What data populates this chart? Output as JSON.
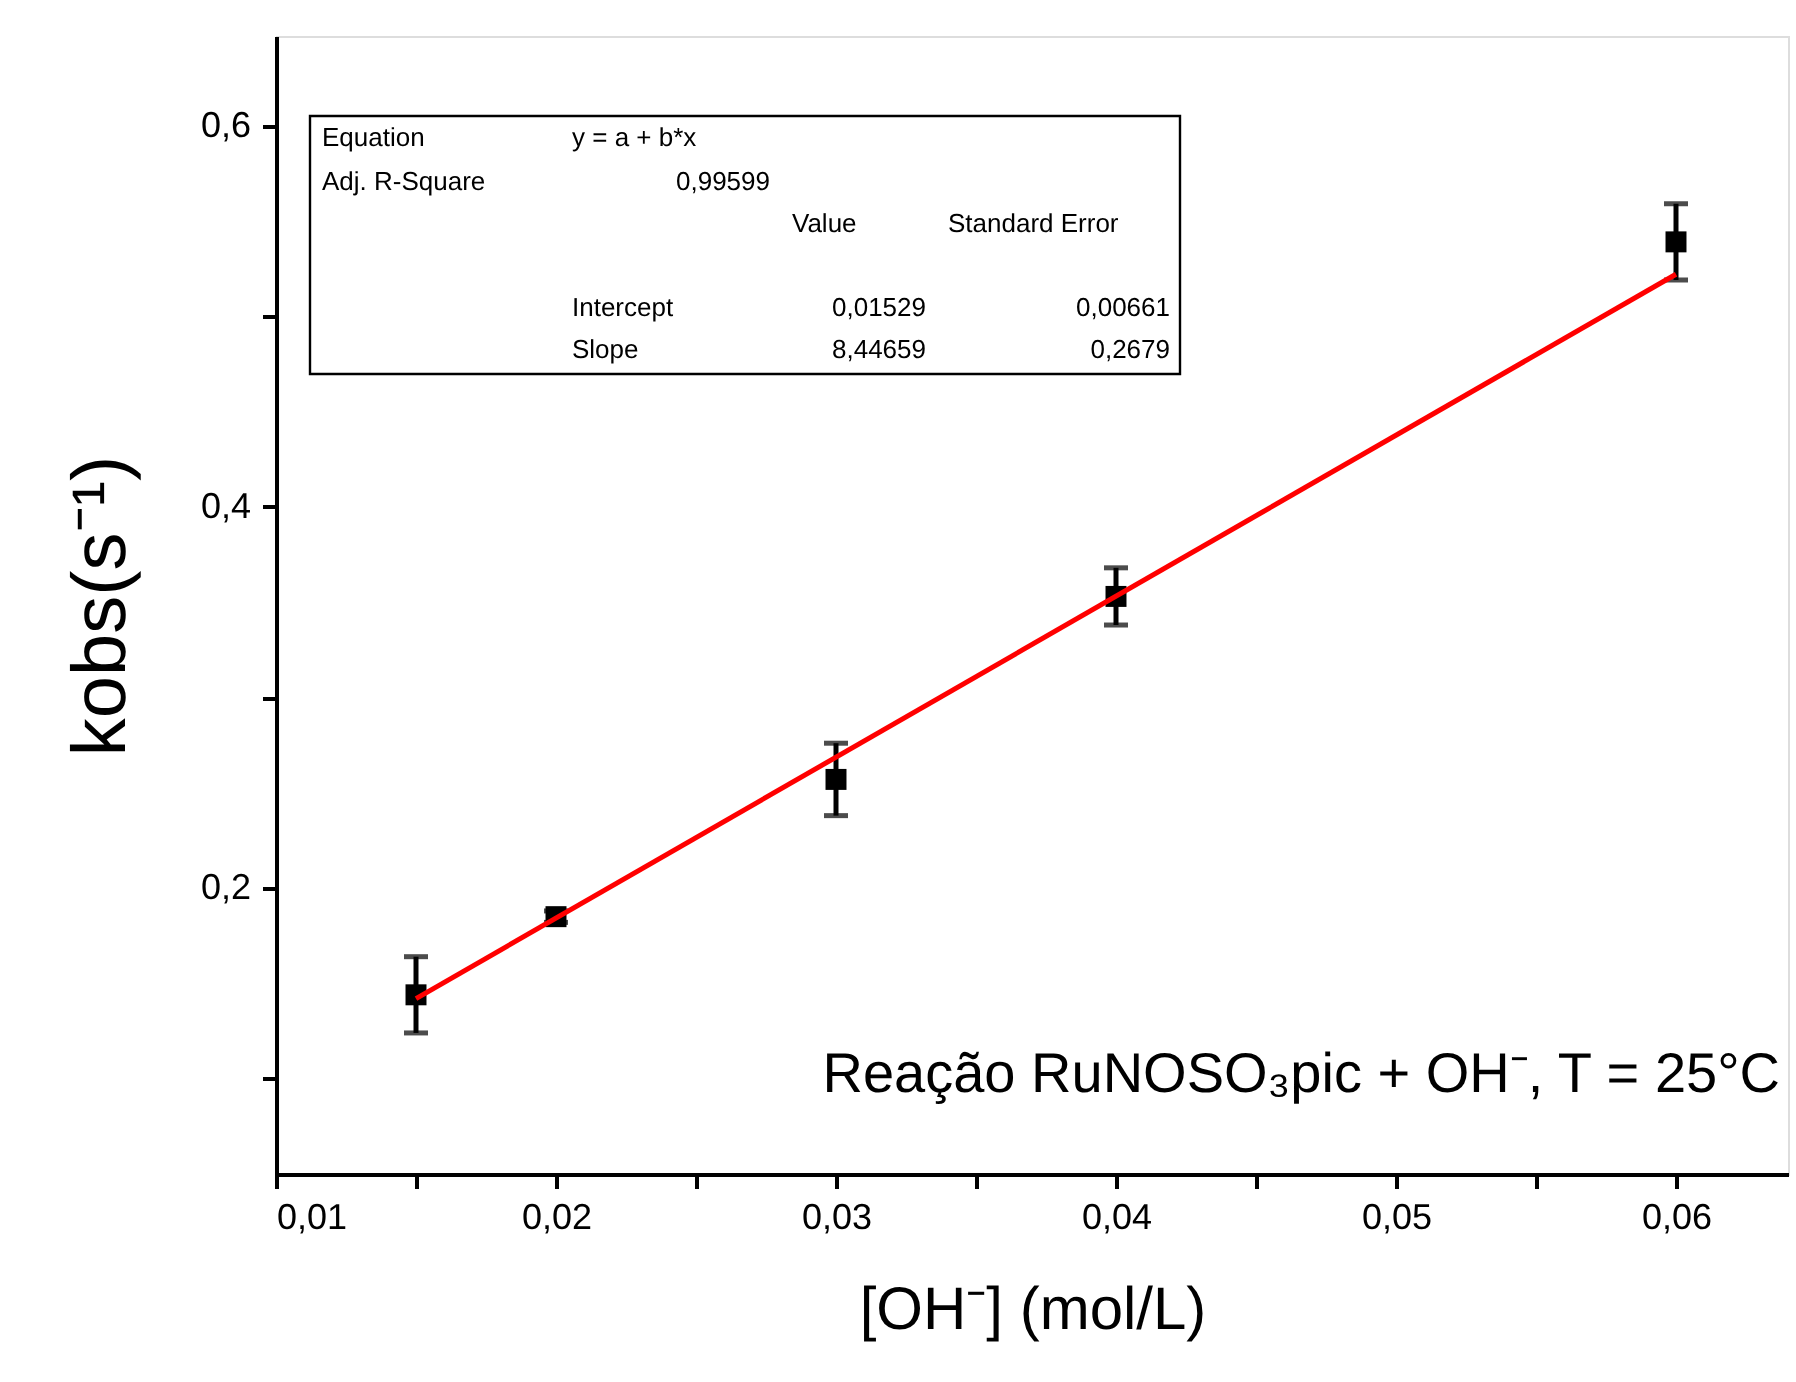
{
  "chart_data": {
    "type": "scatter",
    "xlabel": "[OH⁻] (mol/L)",
    "ylabel": "kobs(s⁻¹)",
    "x": [
      0.015,
      0.02,
      0.03,
      0.04,
      0.06
    ],
    "series": [
      {
        "type": "scatter",
        "color": "#000000",
        "marker": "square",
        "values": [
          0.144,
          0.185,
          0.257,
          0.353,
          0.539
        ],
        "errors": [
          0.02,
          0.003,
          0.019,
          0.015,
          0.02
        ]
      },
      {
        "type": "line",
        "color": "#ff0000",
        "line_style": "solid",
        "x": [
          0.015,
          0.06
        ],
        "values": [
          0.142,
          0.522
        ]
      }
    ],
    "xlim": [
      0.01,
      0.064
    ],
    "ylim": [
      0.05,
      0.647
    ],
    "xticks": [
      {
        "value": 0.01,
        "label": "0,01"
      },
      {
        "value": 0.015,
        "label": null
      },
      {
        "value": 0.02,
        "label": "0,02"
      },
      {
        "value": 0.025,
        "label": null
      },
      {
        "value": 0.03,
        "label": "0,03"
      },
      {
        "value": 0.035,
        "label": null
      },
      {
        "value": 0.04,
        "label": "0,04"
      },
      {
        "value": 0.045,
        "label": null
      },
      {
        "value": 0.05,
        "label": "0,05"
      },
      {
        "value": 0.055,
        "label": null
      },
      {
        "value": 0.06,
        "label": "0,06"
      }
    ],
    "yticks": [
      {
        "value": 0.1,
        "label": null
      },
      {
        "value": 0.2,
        "label": "0,2"
      },
      {
        "value": 0.3,
        "label": null
      },
      {
        "value": 0.4,
        "label": "0,4"
      },
      {
        "value": 0.5,
        "label": null
      },
      {
        "value": 0.6,
        "label": "0,6"
      }
    ],
    "grid": false,
    "annotations": [
      "Equation",
      "y = a + b*x",
      "Adj. R-Square",
      "0,99599",
      "Value",
      "Standard Error",
      "Intercept",
      "0,01529",
      "0,00661",
      "Slope",
      "8,44659",
      "0,2679",
      "Reação RuNOSO₃pic + OH⁻, T = 25°C"
    ]
  }
}
